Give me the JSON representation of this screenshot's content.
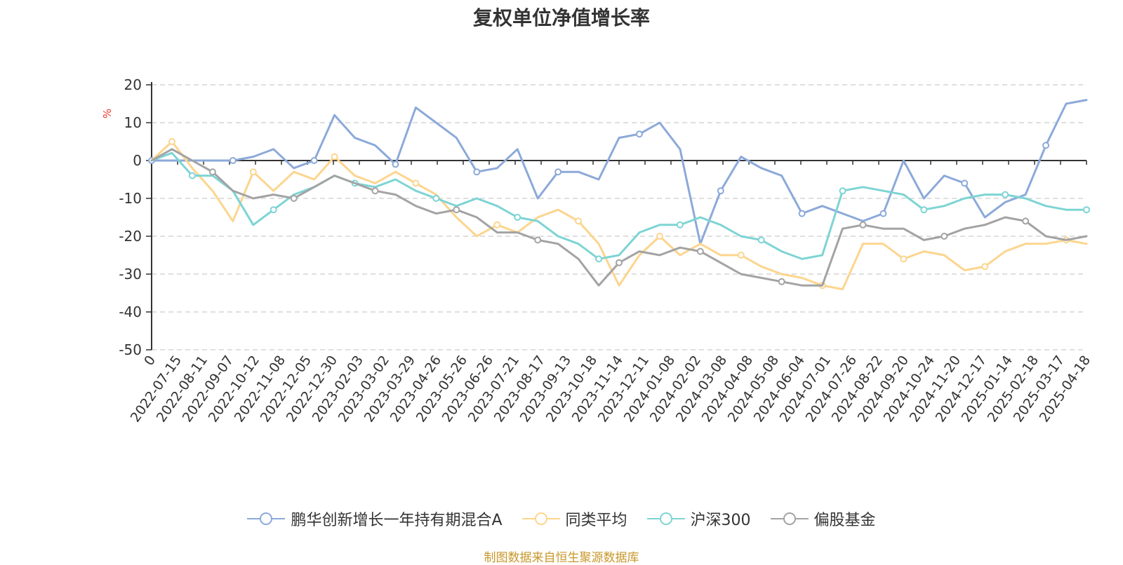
{
  "title": "复权单位净值增长率",
  "source_note": "制图数据来自恒生聚源数据库",
  "chart_data": {
    "type": "line",
    "title": "复权单位净值增长率",
    "ylabel": "%",
    "ylim": [
      -50,
      20
    ],
    "yticks": [
      20,
      10,
      0,
      -10,
      -20,
      -30,
      -40,
      -50
    ],
    "grid": true,
    "legend_position": "bottom-center",
    "x_tick_labels": [
      "0",
      "2022-07-15",
      "2022-08-11",
      "2022-09-07",
      "2022-10-12",
      "2022-11-08",
      "2022-12-05",
      "2022-12-30",
      "2023-02-03",
      "2023-03-02",
      "2023-03-29",
      "2023-04-26",
      "2023-05-26",
      "2023-06-26",
      "2023-07-21",
      "2023-08-17",
      "2023-09-13",
      "2023-10-18",
      "2023-11-14",
      "2023-12-11",
      "2024-01-08",
      "2024-02-02",
      "2024-03-08",
      "2024-04-08",
      "2024-05-08",
      "2024-06-04",
      "2024-07-01",
      "2024-07-26",
      "2024-08-22",
      "2024-09-20",
      "2024-10-24",
      "2024-11-20",
      "2024-12-17",
      "2025-01-14",
      "2025-02-18",
      "2025-03-17",
      "2025-04-18"
    ],
    "series": [
      {
        "name": "鹏华创新增长一年持有期混合A",
        "color": "#8ca9d9",
        "values": [
          0,
          0,
          0,
          0,
          0,
          1,
          3,
          -2,
          0,
          12,
          6,
          4,
          -1,
          14,
          10,
          6,
          -3,
          -2,
          3,
          -10,
          -3,
          -3,
          -5,
          6,
          7,
          10,
          3,
          -22,
          -8,
          1,
          -2,
          -4,
          -14,
          -12,
          -14,
          -16,
          -14,
          0,
          -10,
          -4,
          -6,
          -15,
          -11,
          -9,
          4,
          15,
          16
        ]
      },
      {
        "name": "同类平均",
        "color": "#fcd58e",
        "values": [
          0,
          5,
          -2,
          -8,
          -16,
          -3,
          -8,
          -3,
          -5,
          1,
          -4,
          -6,
          -3,
          -6,
          -9,
          -15,
          -20,
          -17,
          -19,
          -15,
          -13,
          -16,
          -22,
          -33,
          -25,
          -20,
          -25,
          -22,
          -25,
          -25,
          -28,
          -30,
          -31,
          -33,
          -34,
          -22,
          -22,
          -26,
          -24,
          -25,
          -29,
          -28,
          -24,
          -22,
          -22,
          -21,
          -22
        ]
      },
      {
        "name": "沪深300",
        "color": "#7ed4d4",
        "values": [
          0,
          2,
          -4,
          -4,
          -8,
          -17,
          -13,
          -9,
          -7,
          -4,
          -6,
          -7,
          -5,
          -8,
          -10,
          -12,
          -10,
          -12,
          -15,
          -16,
          -20,
          -22,
          -26,
          -25,
          -19,
          -17,
          -17,
          -15,
          -17,
          -20,
          -21,
          -24,
          -26,
          -25,
          -8,
          -7,
          -8,
          -9,
          -13,
          -12,
          -10,
          -9,
          -9,
          -10,
          -12,
          -13,
          -13
        ]
      },
      {
        "name": "偏股基金",
        "color": "#a3a3a3",
        "values": [
          0,
          3,
          0,
          -3,
          -8,
          -10,
          -9,
          -10,
          -7,
          -4,
          -6,
          -8,
          -9,
          -12,
          -14,
          -13,
          -15,
          -19,
          -19,
          -21,
          -22,
          -26,
          -33,
          -27,
          -24,
          -25,
          -23,
          -24,
          -27,
          -30,
          -31,
          -32,
          -33,
          -33,
          -18,
          -17,
          -18,
          -18,
          -21,
          -20,
          -18,
          -17,
          -15,
          -16,
          -20,
          -21,
          -20
        ]
      }
    ]
  }
}
